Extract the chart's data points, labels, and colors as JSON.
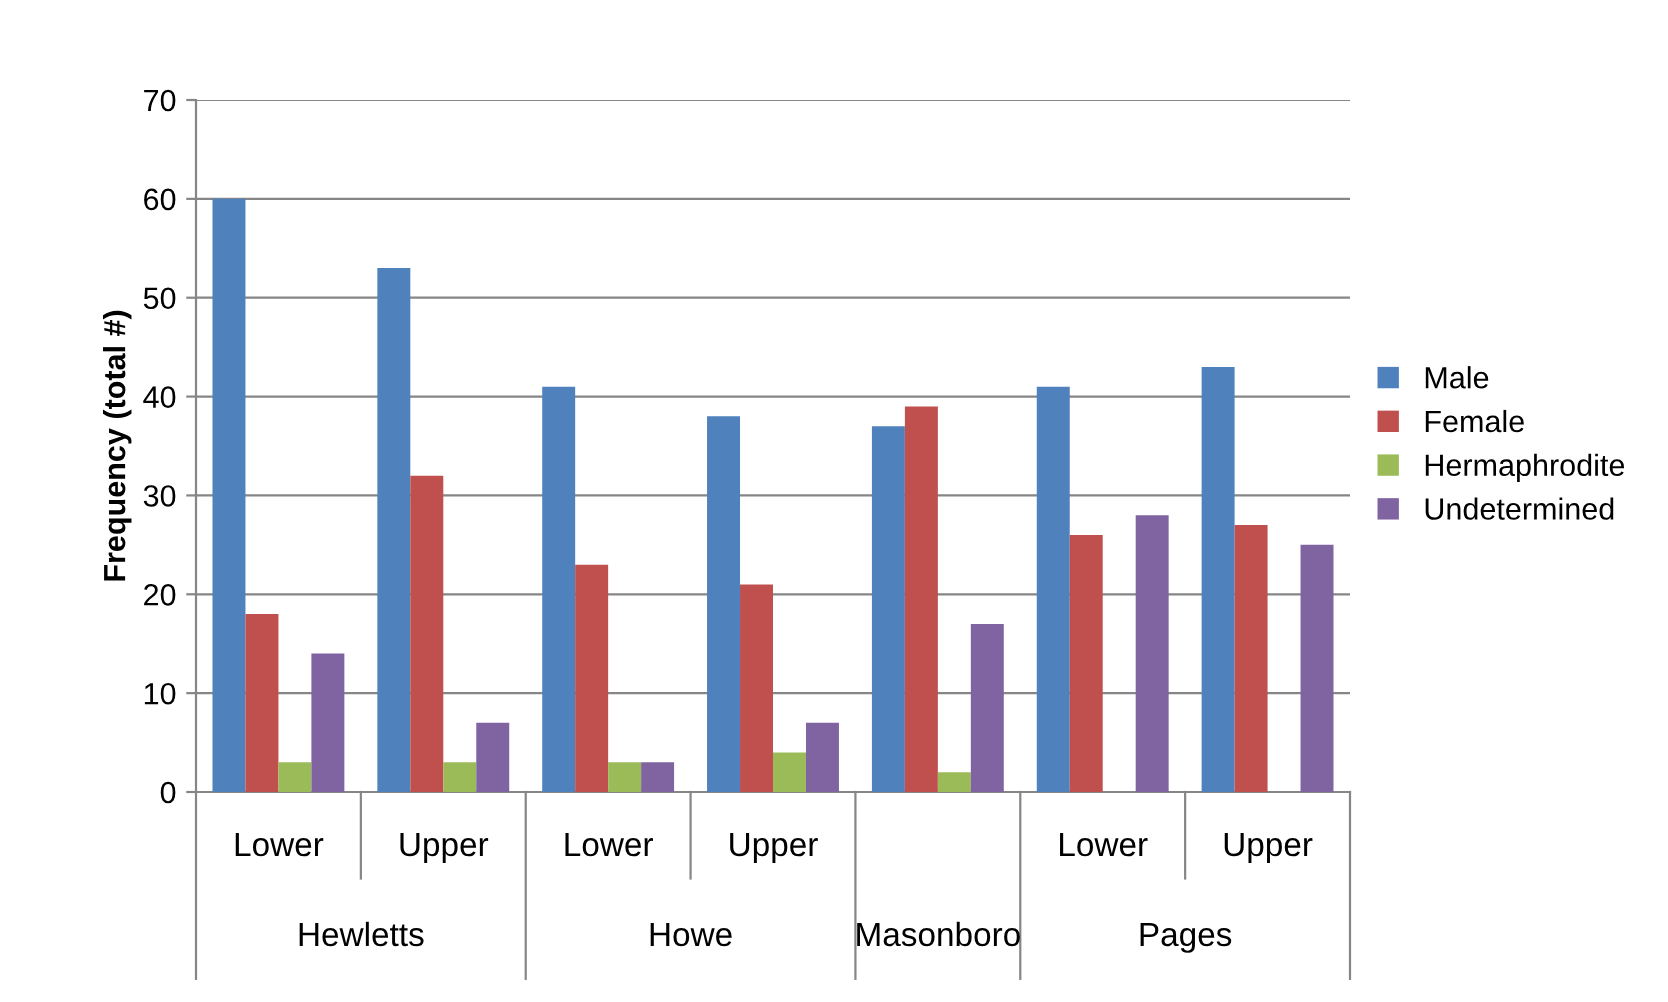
{
  "chart_data": {
    "type": "bar",
    "ylabel": "Frequency (total #)",
    "categories": [
      "Lower",
      "Upper",
      "Lower",
      "Upper",
      null,
      "Lower",
      "Upper"
    ],
    "annotations": [
      "Hewletts",
      "Howe",
      "Masonboro",
      "Pages"
    ],
    "series": [
      {
        "name": "Male",
        "color": "#4f81bd",
        "values": [
          60,
          53,
          41,
          38,
          37,
          41,
          43
        ]
      },
      {
        "name": "Female",
        "color": "#c0504d",
        "values": [
          18,
          32,
          23,
          21,
          39,
          26,
          27
        ]
      },
      {
        "name": "Hermaphrodite",
        "color": "#9bbb59",
        "values": [
          3,
          3,
          3,
          4,
          2,
          null,
          null
        ]
      },
      {
        "name": "Undetermined",
        "color": "#8064a2",
        "values": [
          14,
          7,
          3,
          7,
          17,
          28,
          25
        ]
      }
    ],
    "ylim": [
      0,
      70
    ],
    "yticks": [
      0,
      10,
      20,
      30,
      40,
      50,
      60,
      70
    ],
    "grid": "y",
    "legend": "right"
  }
}
